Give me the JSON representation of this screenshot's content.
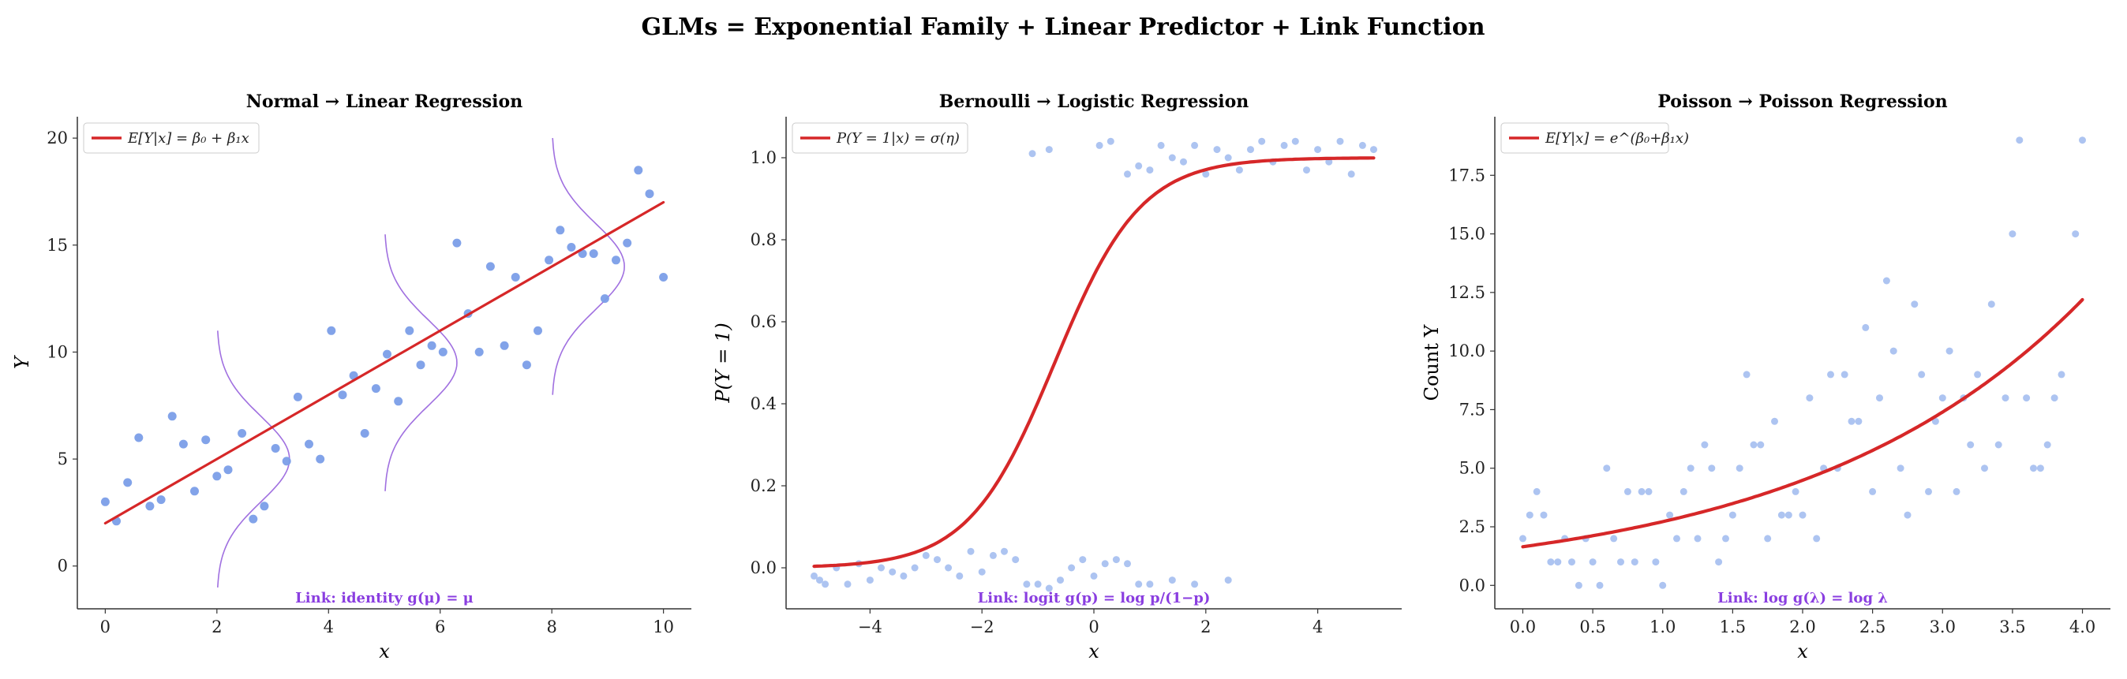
{
  "figure": {
    "suptitle": "GLMs = Exponential Family + Linear Predictor + Link Function",
    "colors": {
      "points": "#7b9ee8",
      "points_light": "#a9c1f0",
      "fit": "#d62728",
      "link": "#8a3ee0",
      "density": "#a070e0"
    }
  },
  "chart_data": [
    {
      "type": "scatter",
      "title": "Normal → Linear Regression",
      "xlabel": "x",
      "ylabel": "Y",
      "xlim": [
        -0.5,
        10.5
      ],
      "ylim": [
        -2,
        21
      ],
      "xticks": [
        0,
        2,
        4,
        6,
        8,
        10
      ],
      "yticks": [
        0,
        5,
        10,
        15,
        20
      ],
      "grid": false,
      "legend": {
        "position": "top-left",
        "label": "E[Y|x] = β₀ + β₁x"
      },
      "link_text": "Link: identity g(μ) = μ",
      "fit_line": {
        "intercept": 2.0,
        "slope": 1.5
      },
      "density_curves": [
        {
          "x_center": 2,
          "y_range": [
            -1,
            11
          ]
        },
        {
          "x_center": 5,
          "y_range": [
            3.5,
            15.5
          ]
        },
        {
          "x_center": 8,
          "y_range": [
            8,
            20
          ]
        }
      ],
      "points": [
        [
          0.0,
          3.0
        ],
        [
          0.2,
          2.1
        ],
        [
          0.4,
          3.9
        ],
        [
          0.6,
          6.0
        ],
        [
          0.8,
          2.8
        ],
        [
          1.0,
          3.1
        ],
        [
          1.2,
          7.0
        ],
        [
          1.4,
          5.7
        ],
        [
          1.6,
          3.5
        ],
        [
          1.8,
          5.9
        ],
        [
          2.0,
          4.2
        ],
        [
          2.2,
          4.5
        ],
        [
          2.45,
          6.2
        ],
        [
          2.65,
          2.2
        ],
        [
          2.85,
          2.8
        ],
        [
          3.05,
          5.5
        ],
        [
          3.25,
          4.9
        ],
        [
          3.45,
          7.9
        ],
        [
          3.65,
          5.7
        ],
        [
          3.85,
          5.0
        ],
        [
          4.05,
          11.0
        ],
        [
          4.25,
          8.0
        ],
        [
          4.45,
          8.9
        ],
        [
          4.65,
          6.2
        ],
        [
          4.85,
          8.3
        ],
        [
          5.05,
          9.9
        ],
        [
          5.25,
          7.7
        ],
        [
          5.45,
          11.0
        ],
        [
          5.65,
          9.4
        ],
        [
          5.85,
          10.3
        ],
        [
          6.05,
          10.0
        ],
        [
          6.3,
          15.1
        ],
        [
          6.5,
          11.8
        ],
        [
          6.7,
          10.0
        ],
        [
          6.9,
          14.0
        ],
        [
          7.15,
          10.3
        ],
        [
          7.35,
          13.5
        ],
        [
          7.55,
          9.4
        ],
        [
          7.75,
          11.0
        ],
        [
          7.95,
          14.3
        ],
        [
          8.15,
          15.7
        ],
        [
          8.35,
          14.9
        ],
        [
          8.55,
          14.6
        ],
        [
          8.75,
          14.6
        ],
        [
          8.95,
          12.5
        ],
        [
          9.15,
          14.3
        ],
        [
          9.35,
          15.1
        ],
        [
          9.55,
          18.5
        ],
        [
          9.75,
          17.4
        ],
        [
          10.0,
          13.5
        ]
      ]
    },
    {
      "type": "scatter",
      "title": "Bernoulli → Logistic Regression",
      "xlabel": "x",
      "ylabel": "P(Y = 1)",
      "xlim": [
        -5.5,
        5.5
      ],
      "ylim": [
        -0.1,
        1.1
      ],
      "xticks": [
        -4,
        -2,
        0,
        2,
        4
      ],
      "yticks": [
        0.0,
        0.2,
        0.4,
        0.6,
        0.8,
        1.0
      ],
      "grid": false,
      "legend": {
        "position": "top-left",
        "label": "P(Y = 1|x) = σ(η)"
      },
      "link_text": "Link: logit g(p) = log p/(1−p)",
      "fit_curve": {
        "function": "sigmoid",
        "x_range": [
          -5,
          5
        ]
      },
      "points": [
        [
          -5.0,
          -0.02
        ],
        [
          -4.9,
          -0.03
        ],
        [
          -4.8,
          -0.04
        ],
        [
          -4.6,
          0.0
        ],
        [
          -4.4,
          -0.04
        ],
        [
          -4.2,
          0.01
        ],
        [
          -4.0,
          -0.03
        ],
        [
          -3.8,
          0.0
        ],
        [
          -3.6,
          -0.01
        ],
        [
          -3.4,
          -0.02
        ],
        [
          -3.2,
          0.0
        ],
        [
          -3.0,
          0.03
        ],
        [
          -2.8,
          0.02
        ],
        [
          -2.6,
          0.0
        ],
        [
          -2.4,
          -0.02
        ],
        [
          -2.2,
          0.04
        ],
        [
          -2.0,
          -0.01
        ],
        [
          -1.8,
          0.03
        ],
        [
          -1.6,
          0.04
        ],
        [
          -1.4,
          0.02
        ],
        [
          -1.2,
          -0.04
        ],
        [
          -1.0,
          -0.04
        ],
        [
          -0.8,
          -0.05
        ],
        [
          -0.6,
          -0.03
        ],
        [
          -0.4,
          0.0
        ],
        [
          -0.2,
          0.02
        ],
        [
          0.0,
          -0.02
        ],
        [
          0.2,
          0.01
        ],
        [
          0.4,
          0.02
        ],
        [
          0.6,
          0.01
        ],
        [
          0.8,
          -0.04
        ],
        [
          1.0,
          -0.04
        ],
        [
          1.4,
          -0.03
        ],
        [
          1.8,
          -0.04
        ],
        [
          2.4,
          -0.03
        ],
        [
          -1.1,
          1.01
        ],
        [
          -0.8,
          1.02
        ],
        [
          0.1,
          1.03
        ],
        [
          0.3,
          1.04
        ],
        [
          0.6,
          0.96
        ],
        [
          0.8,
          0.98
        ],
        [
          1.0,
          0.97
        ],
        [
          1.2,
          1.03
        ],
        [
          1.4,
          1.0
        ],
        [
          1.6,
          0.99
        ],
        [
          1.8,
          1.03
        ],
        [
          2.0,
          0.96
        ],
        [
          2.2,
          1.02
        ],
        [
          2.4,
          1.0
        ],
        [
          2.6,
          0.97
        ],
        [
          2.8,
          1.02
        ],
        [
          3.0,
          1.04
        ],
        [
          3.2,
          0.99
        ],
        [
          3.4,
          1.03
        ],
        [
          3.6,
          1.04
        ],
        [
          3.8,
          0.97
        ],
        [
          4.0,
          1.02
        ],
        [
          4.2,
          0.99
        ],
        [
          4.4,
          1.04
        ],
        [
          4.6,
          0.96
        ],
        [
          4.8,
          1.03
        ],
        [
          5.0,
          1.02
        ]
      ]
    },
    {
      "type": "scatter",
      "title": "Poisson → Poisson Regression",
      "xlabel": "x",
      "ylabel": "Count Y",
      "xlim": [
        -0.2,
        4.2
      ],
      "ylim": [
        -1,
        20
      ],
      "xticks": [
        0.0,
        0.5,
        1.0,
        1.5,
        2.0,
        2.5,
        3.0,
        3.5,
        4.0
      ],
      "yticks": [
        0.0,
        2.5,
        5.0,
        7.5,
        10.0,
        12.5,
        15.0,
        17.5
      ],
      "grid": false,
      "legend": {
        "position": "top-left",
        "label": "E[Y|x] = e^(β₀+β₁x)"
      },
      "link_text": "Link: log g(λ) = log λ",
      "fit_curve": {
        "function": "exp",
        "a": 1.65,
        "b": 0.5
      },
      "points": [
        [
          0.0,
          2
        ],
        [
          0.05,
          3
        ],
        [
          0.1,
          4
        ],
        [
          0.15,
          3
        ],
        [
          0.2,
          1
        ],
        [
          0.25,
          1
        ],
        [
          0.3,
          2
        ],
        [
          0.35,
          1
        ],
        [
          0.4,
          0
        ],
        [
          0.45,
          2
        ],
        [
          0.5,
          1
        ],
        [
          0.55,
          0
        ],
        [
          0.6,
          5
        ],
        [
          0.65,
          2
        ],
        [
          0.7,
          1
        ],
        [
          0.75,
          4
        ],
        [
          0.8,
          1
        ],
        [
          0.85,
          4
        ],
        [
          0.9,
          4
        ],
        [
          0.95,
          1
        ],
        [
          1.0,
          0
        ],
        [
          1.05,
          3
        ],
        [
          1.1,
          2
        ],
        [
          1.15,
          4
        ],
        [
          1.2,
          5
        ],
        [
          1.25,
          2
        ],
        [
          1.3,
          6
        ],
        [
          1.35,
          5
        ],
        [
          1.4,
          1
        ],
        [
          1.45,
          2
        ],
        [
          1.5,
          3
        ],
        [
          1.55,
          5
        ],
        [
          1.6,
          9
        ],
        [
          1.65,
          6
        ],
        [
          1.7,
          6
        ],
        [
          1.75,
          2
        ],
        [
          1.8,
          7
        ],
        [
          1.85,
          3
        ],
        [
          1.9,
          3
        ],
        [
          1.95,
          4
        ],
        [
          2.0,
          3
        ],
        [
          2.05,
          8
        ],
        [
          2.1,
          2
        ],
        [
          2.15,
          5
        ],
        [
          2.2,
          9
        ],
        [
          2.25,
          5
        ],
        [
          2.3,
          9
        ],
        [
          2.35,
          7
        ],
        [
          2.4,
          7
        ],
        [
          2.45,
          11
        ],
        [
          2.5,
          4
        ],
        [
          2.55,
          8
        ],
        [
          2.6,
          13
        ],
        [
          2.65,
          10
        ],
        [
          2.7,
          5
        ],
        [
          2.75,
          3
        ],
        [
          2.8,
          12
        ],
        [
          2.85,
          9
        ],
        [
          2.9,
          4
        ],
        [
          2.95,
          7
        ],
        [
          3.0,
          8
        ],
        [
          3.05,
          10
        ],
        [
          3.1,
          4
        ],
        [
          3.15,
          8
        ],
        [
          3.2,
          6
        ],
        [
          3.25,
          9
        ],
        [
          3.3,
          5
        ],
        [
          3.35,
          12
        ],
        [
          3.4,
          6
        ],
        [
          3.45,
          8
        ],
        [
          3.5,
          15
        ],
        [
          3.55,
          19
        ],
        [
          3.6,
          8
        ],
        [
          3.65,
          5
        ],
        [
          3.7,
          5
        ],
        [
          3.75,
          6
        ],
        [
          3.8,
          8
        ],
        [
          3.85,
          9
        ],
        [
          3.95,
          15
        ],
        [
          4.0,
          19
        ]
      ]
    }
  ]
}
